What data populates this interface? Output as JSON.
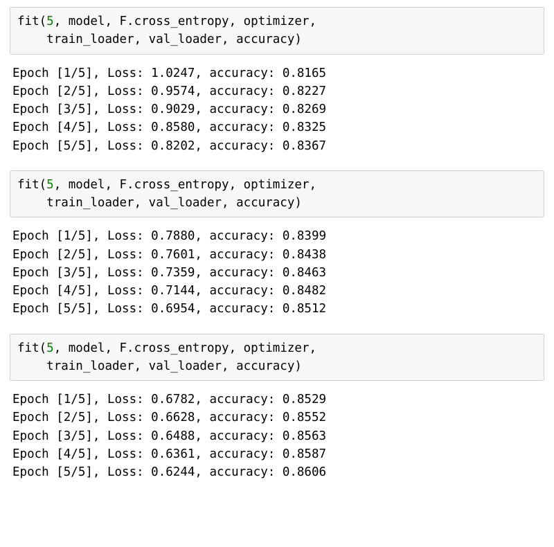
{
  "colors": {
    "cell_bg": "#f7f7f7",
    "cell_border": "#cfcfcf",
    "number_token": "#008300",
    "text_color": "#000000",
    "page_bg": "#ffffff"
  },
  "typography": {
    "font_family": "Menlo, Consolas, DejaVu Sans Mono, monospace",
    "font_size_pt": 13,
    "line_height": 1.5
  },
  "sections": [
    {
      "code": {
        "call": "fit",
        "arg_number": "5",
        "line1_rest": ", model, F.cross_entropy, optimizer,",
        "line2_indent": "    ",
        "line2_rest": "train_loader, val_loader, accuracy)"
      },
      "output_lines": [
        "Epoch [1/5], Loss: 1.0247, accuracy: 0.8165",
        "Epoch [2/5], Loss: 0.9574, accuracy: 0.8227",
        "Epoch [3/5], Loss: 0.9029, accuracy: 0.8269",
        "Epoch [4/5], Loss: 0.8580, accuracy: 0.8325",
        "Epoch [5/5], Loss: 0.8202, accuracy: 0.8367"
      ]
    },
    {
      "code": {
        "call": "fit",
        "arg_number": "5",
        "line1_rest": ", model, F.cross_entropy, optimizer,",
        "line2_indent": "    ",
        "line2_rest": "train_loader, val_loader, accuracy)"
      },
      "output_lines": [
        "Epoch [1/5], Loss: 0.7880, accuracy: 0.8399",
        "Epoch [2/5], Loss: 0.7601, accuracy: 0.8438",
        "Epoch [3/5], Loss: 0.7359, accuracy: 0.8463",
        "Epoch [4/5], Loss: 0.7144, accuracy: 0.8482",
        "Epoch [5/5], Loss: 0.6954, accuracy: 0.8512"
      ]
    },
    {
      "code": {
        "call": "fit",
        "arg_number": "5",
        "line1_rest": ", model, F.cross_entropy, optimizer,",
        "line2_indent": "    ",
        "line2_rest": "train_loader, val_loader, accuracy)"
      },
      "output_lines": [
        "Epoch [1/5], Loss: 0.6782, accuracy: 0.8529",
        "Epoch [2/5], Loss: 0.6628, accuracy: 0.8552",
        "Epoch [3/5], Loss: 0.6488, accuracy: 0.8563",
        "Epoch [4/5], Loss: 0.6361, accuracy: 0.8587",
        "Epoch [5/5], Loss: 0.6244, accuracy: 0.8606"
      ]
    }
  ]
}
